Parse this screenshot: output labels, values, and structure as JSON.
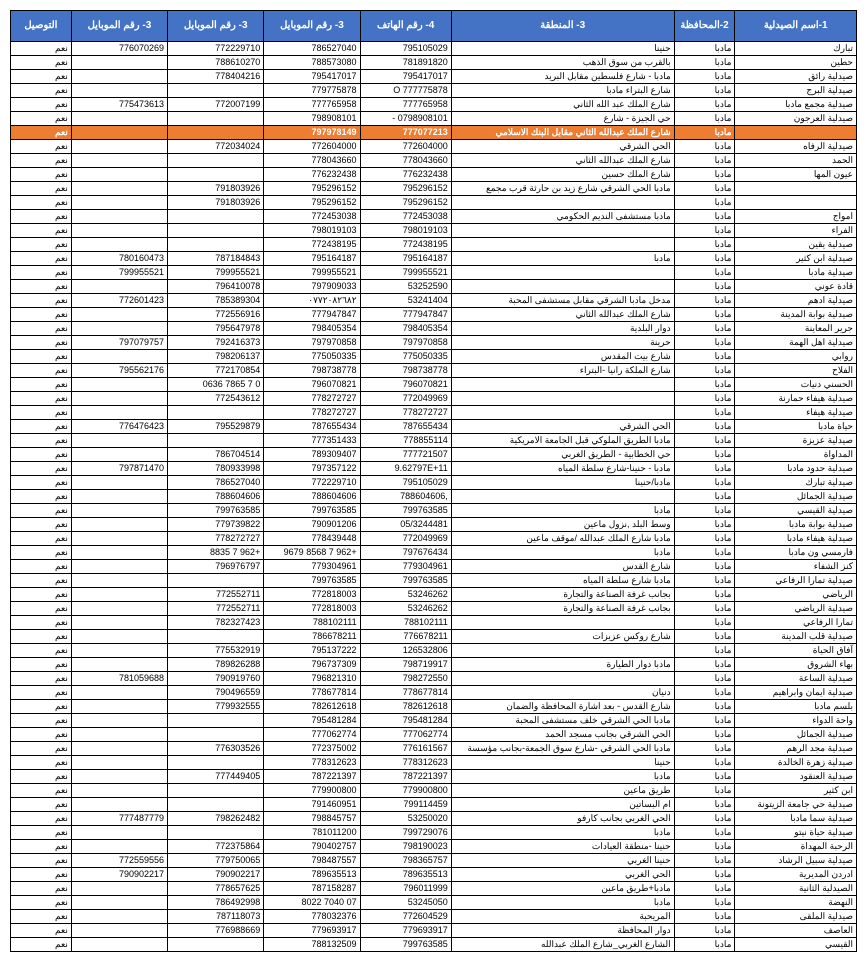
{
  "headers": [
    "1-اسم الصيدلية",
    "2-المحافظة",
    "3- المنطقة",
    "4- رقم الهاتف",
    "3- رقم الموبايل",
    "3- رقم الموبايل",
    "3- رقم الموبايل",
    "التوصيل"
  ],
  "highlight_rows": [
    6
  ],
  "rows": [
    [
      "تبارك",
      "مادبا",
      "حنينا",
      "795105029",
      "786527040",
      "772229710",
      "776070269",
      "نعم"
    ],
    [
      "حطين",
      "مادبا",
      "بالقرب من سوق الذهب",
      "781891820",
      "788573080",
      "788610270",
      "",
      "نعم"
    ],
    [
      "صيدلية رائق",
      "مادبا",
      "مادبا - شارع فلسطين مقابل البريد",
      "795417017",
      "795417017",
      "778404216",
      "",
      "نعم"
    ],
    [
      "صيدلية البرج",
      "مادبا",
      "شارع البتراء مادبا",
      "O 777775878",
      "779775878",
      "",
      "",
      "نعم"
    ],
    [
      "صيدلية مجمع مادبا",
      "مادبا",
      "شارع الملك عبد الله الثاني",
      "777765958",
      "777765958",
      "772007199",
      "775473613",
      "نعم"
    ],
    [
      "صيدلية العرجون",
      "مادبا",
      "حي الجيزة - شارع",
      "0798908101 -",
      "798908101",
      "",
      "",
      "نعم"
    ],
    [
      "",
      "مادبا",
      "شارع الملك عبدالله الثاني مقابل البنك الاسلامي",
      "777077213",
      "797978149",
      "",
      "",
      "نعم"
    ],
    [
      "صيدلية الرفاه",
      "مادبا",
      "الحي الشرقي",
      "772604000",
      "772604000",
      "772034024",
      "",
      "نعم"
    ],
    [
      "الحمد",
      "مادبا",
      "شارع الملك عبدالله الثاني",
      "778043660",
      "778043660",
      "",
      "",
      "نعم"
    ],
    [
      "عيون المها",
      "مادبا",
      "شارع الملك حسين",
      "776232438",
      "776232438",
      "",
      "",
      "نعم"
    ],
    [
      "",
      "مادبا",
      "مادبا الحي الشرقي شارع زيد بن حارثة قرب مجمع",
      "795296152",
      "795296152",
      "791803926",
      "",
      "نعم"
    ],
    [
      "",
      "مادبا",
      "",
      "795296152",
      "795296152",
      "791803926",
      "",
      "نعم"
    ],
    [
      "امواج",
      "مادبا",
      "مادبا مستشفى النديم الحكومي",
      "772453038",
      "772453038",
      "",
      "",
      "نعم"
    ],
    [
      "الفراء",
      "مادبا",
      "",
      "798019103",
      "798019103",
      "",
      "",
      "نعم"
    ],
    [
      "صيدلية يقين",
      "مادبا",
      "",
      "772438195",
      "772438195",
      "",
      "",
      "نعم"
    ],
    [
      "صيدلية ابن كثير",
      "مادبا",
      "مادبا",
      "795164187",
      "795164187",
      "787184843",
      "780160473",
      "نعم"
    ],
    [
      "صيدلية مادبا",
      "مادبا",
      "",
      "799955521",
      "799955521",
      "799955521",
      "799955521",
      "نعم"
    ],
    [
      "قادة عوني",
      "مادبا",
      "",
      "53252590",
      "797909033",
      "796410078",
      "",
      "نعم"
    ],
    [
      "صيدلية ادهم",
      "مادبا",
      "مدخل مادبا الشرقي مقابل مستشفى المحبة",
      "53241404",
      "٠٧٧٢٠٨٢٦٨٢",
      "785389304",
      "772601423",
      "نعم"
    ],
    [
      "صيدلية بوابة المدينة",
      "مادبا",
      "شارع الملك عبدالله الثاني",
      "777947847",
      "777947847",
      "772556916",
      "",
      "نعم"
    ],
    [
      "جرير المعاينة",
      "مادبا",
      "دوار البلدية",
      "798405354",
      "798405354",
      "795647978",
      "",
      "نعم"
    ],
    [
      "صيدلية اهل الهمة",
      "مادبا",
      "حرينة",
      "797970858",
      "797970858",
      "792416373",
      "797079757",
      "نعم"
    ],
    [
      "روابي",
      "مادبا",
      "شارع بيت المقدس",
      "775050335",
      "775050335",
      "798206137",
      "",
      "نعم"
    ],
    [
      "الفلاح",
      "مادبا",
      "شارع الملكة رانيا -البتراء",
      "798738778",
      "798738778",
      "772170854",
      "795562176",
      "نعم"
    ],
    [
      "الحسني دنيات",
      "مادبا",
      "",
      "796070821",
      "796070821",
      "0 7 7865 0636",
      "",
      "نعم"
    ],
    [
      "صيدلية هيفاء حمارنة",
      "مادبا",
      "",
      "772049969",
      "778272727",
      "772543612",
      "",
      "نعم"
    ],
    [
      "صيدلية هيفاء",
      "مادبا",
      "",
      "778272727",
      "778272727",
      "",
      "",
      "نعم"
    ],
    [
      "حياة مادبا",
      "مادبا",
      "الحي الشرقي",
      "787655434",
      "787655434",
      "795529879",
      "776476423",
      "نعم"
    ],
    [
      "صيدلية عزيزة",
      "مادبا",
      "مادبا الطريق الملوكي قبل الجامعة الامريكية",
      "778855114",
      "777351433",
      "",
      "",
      "نعم"
    ],
    [
      "المداواة",
      "مادبا",
      "حي الخطابية - الطريق الغربي",
      "777721507",
      "789309407",
      "786704514",
      "",
      "نعم"
    ],
    [
      "صيدلية حدود مادبا",
      "مادبا",
      "مادبا - حنينا-شارع سلطة المياه",
      "9.62797E+11",
      "797357122",
      "780933998",
      "797871470",
      "نعم"
    ],
    [
      "صيدلية تبارك",
      "مادبا",
      "مادبا/حنينا",
      "795105029",
      "772229710",
      "786527040",
      "",
      "نعم"
    ],
    [
      "صيدلية الجمائل",
      "مادبا",
      "",
      ",788604606",
      "788604606",
      "788604606",
      "",
      "نعم"
    ],
    [
      "صيدلية القيسي",
      "مادبا",
      "مادبا",
      "799763585",
      "799763585",
      "799763585",
      "",
      "نعم"
    ],
    [
      "صيدلية بوابة مادبا",
      "مادبا",
      "وسط البلد ,نزول ماعين",
      "05/3244481",
      "790901206",
      "779739822",
      "",
      "نعم"
    ],
    [
      "صيدلية هيفاء مادبا",
      "مادبا",
      "مادبا شارع الملك عبدالله /موقف ماعين",
      "772049969",
      "778439448",
      "778272727",
      "",
      "نعم"
    ],
    [
      "فارمسي ون مادبا",
      "مادبا",
      "مادبا",
      "797676434",
      "+962 7 8568 9679",
      "+962 7 8835",
      "",
      "نعم"
    ],
    [
      "كنز الشفاء",
      "مادبا",
      "شارع القدس",
      "779304961",
      "779304961",
      "796976797",
      "",
      "نعم"
    ],
    [
      "صيدلية تمارا الرفاعي",
      "مادبا",
      "مادبا شارع سلطة المياه",
      "799763585",
      "799763585",
      "",
      "",
      "نعم"
    ],
    [
      "الرياضي",
      "مادبا",
      "بجانب غرفة الصناعة والتجارة",
      "53246262",
      "772818003",
      "772552711",
      "",
      "نعم"
    ],
    [
      "صيدلية الرياضي",
      "مادبا",
      "بجانب غرفة الصناعة والتجارة",
      "53246262",
      "772818003",
      "772552711",
      "",
      "نعم"
    ],
    [
      "تمارا الرفاعي",
      "مادبا",
      "",
      "788102111",
      "788102111",
      "782327423",
      "",
      "نعم"
    ],
    [
      "صيدلية قلب المدينة",
      "مادبا",
      "شارع روكس عزيزات",
      "776678211",
      "786678211",
      "",
      "",
      "نعم"
    ],
    [
      "آفاق الحياة",
      "مادبا",
      "",
      "126532806",
      "795137222",
      "775532919",
      "",
      "نعم"
    ],
    [
      "بهاء الشروق",
      "مادبا",
      "مادبا دوار الطيارة",
      "798719917",
      "796737309",
      "789826288",
      "",
      "نعم"
    ],
    [
      "صيدلية الساعة",
      "مادبا",
      "",
      "798272550",
      "796821310",
      "790919760",
      "781059688",
      "نعم"
    ],
    [
      "صيدلية ايمان وابراهيم",
      "مادبا",
      "دنيان",
      "778677814",
      "778677814",
      "790496559",
      "",
      "نعم"
    ],
    [
      "بلسم مادبا",
      "مادبا",
      "شارع القدس - بعد اشارة المحافظة والضمان",
      "782612618",
      "782612618",
      "779932555",
      "",
      "نعم"
    ],
    [
      "واحة الدواء",
      "مادبا",
      "مادبا الحي الشرقي خلف مستشفى المحبة",
      "795481284",
      "795481284",
      "",
      "",
      "نعم"
    ],
    [
      "صيدلية الجمائل",
      "مادبا",
      "الحي الشرقي بجانب مسجد الحمد",
      "777062774",
      "777062774",
      "",
      "",
      "نعم"
    ],
    [
      "صيدلية مجد الرهم",
      "مادبا",
      "مادبا الحي الشرقي -شارع سوق الجمعة-بجانب مؤسسة",
      "776161567",
      "772375002",
      "776303526",
      "",
      "نعم"
    ],
    [
      "صيدلية زهرة الخالدة",
      "مادبا",
      "حنينا",
      "778312623",
      "778312623",
      "",
      "",
      "نعم"
    ],
    [
      "صيدلية العنقود",
      "مادبا",
      "مادبا",
      "787221397",
      "787221397",
      "777449405",
      "",
      "نعم"
    ],
    [
      "ابن كثير",
      "مادبا",
      "طريق ماعين",
      "779900800",
      "779900800",
      "",
      "",
      "نعم"
    ],
    [
      "صيدلية حي جامعة الزيتونة",
      "مادبا",
      "ام البساتين",
      "799114459",
      "791460951",
      "",
      "",
      "نعم"
    ],
    [
      "صيدلية سما مادبا",
      "مادبا",
      "الحي الغربي بجانب كارفو",
      "53250020",
      "798845757",
      "798262482",
      "777487779",
      "نعم"
    ],
    [
      "صيدلية حياة نيتو",
      "مادبا",
      "مادبا",
      "799729076",
      "781011200",
      "",
      "",
      "نعم"
    ],
    [
      "الرحبة المهداة",
      "مادبا",
      "حنينا -منطقة العيادات",
      "798190023",
      "790402757",
      "772375864",
      "",
      "نعم"
    ],
    [
      "صيدلية سبيل الرشاد",
      "مادبا",
      "حنينا الغربي",
      "798365757",
      "798487557",
      "779750065",
      "772559556",
      "نعم"
    ],
    [
      "ادردن المديرية",
      "مادبا",
      "الحي الغربي",
      "789635513",
      "789635513",
      "790902217",
      "790902217",
      "نعم"
    ],
    [
      "الصيدلية الثانية",
      "مادبا",
      "مادبا+طريق ماعين",
      "796011999",
      "787158287",
      "778657625",
      "",
      "نعم"
    ],
    [
      "النهضة",
      "مادبا",
      "مادبا",
      "53245050",
      "07 7040 8022",
      "786492998",
      "",
      "نعم"
    ],
    [
      "صيدلية الملقى",
      "مادبا",
      "المريحبة",
      "772604529",
      "778032376",
      "787118073",
      "",
      "نعم"
    ],
    [
      "العاصف",
      "مادبا",
      "دوار المحافظة",
      "779693917",
      "779693917",
      "776988669",
      "",
      "نعم"
    ],
    [
      "القيسي",
      "مادبا",
      "الشارع الغربي_شارع الملك عبدالله",
      "799763585",
      "788132509",
      "",
      "",
      "نعم"
    ]
  ]
}
